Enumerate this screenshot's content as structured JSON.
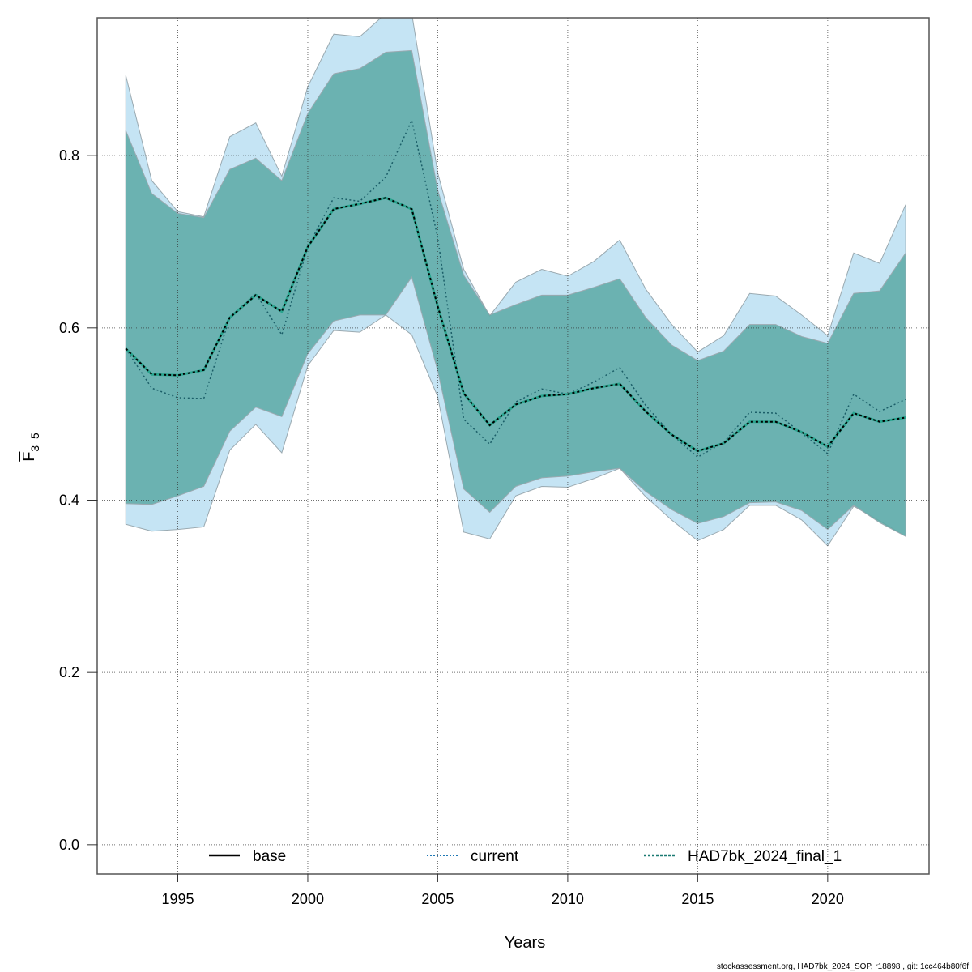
{
  "chart_data": {
    "type": "line",
    "title": "",
    "xlabel": "Years",
    "ylabel": "F̅ 3-5",
    "ylabel_main": "F",
    "ylabel_sub": "3–5",
    "xlim": [
      1991.9,
      2023.9
    ],
    "ylim": [
      -0.034,
      0.96
    ],
    "x_ticks": [
      1995,
      2000,
      2005,
      2010,
      2015,
      2020
    ],
    "y_ticks": [
      0.0,
      0.2,
      0.4,
      0.6,
      0.8
    ],
    "y_tick_labels": [
      "0.0",
      "0.2",
      "0.4",
      "0.6",
      "0.8"
    ],
    "x_tick_labels": [
      "1995",
      "2000",
      "2005",
      "2010",
      "2015",
      "2020"
    ],
    "grid": true,
    "legend_position": "bottom",
    "x": [
      1993,
      1994,
      1995,
      1996,
      1997,
      1998,
      1999,
      2000,
      2001,
      2002,
      2003,
      2004,
      2005,
      2006,
      2007,
      2008,
      2009,
      2010,
      2011,
      2012,
      2013,
      2014,
      2015,
      2016,
      2017,
      2018,
      2019,
      2020,
      2021,
      2022,
      2023
    ],
    "series": [
      {
        "name": "base",
        "style": "solid",
        "color": "#000000",
        "values": [
          0.576,
          0.546,
          0.545,
          0.551,
          0.612,
          0.638,
          0.619,
          0.694,
          0.738,
          0.744,
          0.751,
          0.738,
          0.625,
          0.524,
          0.487,
          0.511,
          0.521,
          0.523,
          0.53,
          0.535,
          0.503,
          0.476,
          0.457,
          0.466,
          0.491,
          0.491,
          0.479,
          0.462,
          0.501,
          0.491,
          0.496
        ]
      },
      {
        "name": "current",
        "style": "dotted",
        "color": "#1f78b4",
        "values": [
          0.576,
          0.53,
          0.519,
          0.518,
          0.612,
          0.64,
          0.592,
          0.694,
          0.751,
          0.747,
          0.775,
          0.841,
          0.705,
          0.494,
          0.465,
          0.514,
          0.529,
          0.523,
          0.537,
          0.554,
          0.51,
          0.476,
          0.45,
          0.467,
          0.502,
          0.501,
          0.478,
          0.454,
          0.523,
          0.503,
          0.517
        ]
      },
      {
        "name": "HAD7bk_2024_final_1",
        "style": "dashed",
        "color": "#1b7a72",
        "values": [
          0.576,
          0.546,
          0.545,
          0.551,
          0.612,
          0.638,
          0.619,
          0.694,
          0.738,
          0.744,
          0.751,
          0.738,
          0.625,
          0.524,
          0.487,
          0.511,
          0.521,
          0.523,
          0.53,
          0.535,
          0.503,
          0.476,
          0.457,
          0.466,
          0.491,
          0.491,
          0.479,
          0.462,
          0.501,
          0.491,
          0.496
        ]
      }
    ],
    "bands": [
      {
        "name": "current-ci",
        "fill": "#c5e4f4",
        "upper": [
          0.893,
          0.771,
          0.735,
          0.729,
          0.822,
          0.838,
          0.776,
          0.88,
          0.941,
          0.938,
          0.965,
          0.965,
          0.78,
          0.668,
          0.614,
          0.653,
          0.668,
          0.66,
          0.677,
          0.702,
          0.645,
          0.604,
          0.572,
          0.591,
          0.64,
          0.637,
          0.615,
          0.591,
          0.687,
          0.675,
          0.743
        ],
        "lower": [
          0.372,
          0.364,
          0.366,
          0.369,
          0.458,
          0.488,
          0.455,
          0.556,
          0.597,
          0.595,
          0.615,
          0.592,
          0.52,
          0.363,
          0.355,
          0.405,
          0.416,
          0.415,
          0.425,
          0.437,
          0.404,
          0.377,
          0.353,
          0.366,
          0.394,
          0.394,
          0.377,
          0.347,
          0.393,
          0.376,
          0.358
        ]
      },
      {
        "name": "HAD7bk-ci",
        "fill": "#5aa9a4",
        "upper": [
          0.829,
          0.756,
          0.733,
          0.728,
          0.784,
          0.797,
          0.771,
          0.849,
          0.895,
          0.901,
          0.92,
          0.922,
          0.76,
          0.661,
          0.615,
          0.627,
          0.638,
          0.638,
          0.647,
          0.657,
          0.612,
          0.58,
          0.562,
          0.573,
          0.604,
          0.604,
          0.59,
          0.582,
          0.64,
          0.643,
          0.687
        ],
        "lower": [
          0.396,
          0.395,
          0.405,
          0.416,
          0.48,
          0.508,
          0.497,
          0.57,
          0.608,
          0.615,
          0.615,
          0.659,
          0.55,
          0.413,
          0.386,
          0.416,
          0.426,
          0.428,
          0.433,
          0.437,
          0.41,
          0.389,
          0.373,
          0.381,
          0.397,
          0.398,
          0.388,
          0.366,
          0.394,
          0.374,
          0.358
        ]
      }
    ],
    "credit": "stockassessment.org, HAD7bk_2024_SOP, r18898 , git: 1cc464b80f6f"
  }
}
